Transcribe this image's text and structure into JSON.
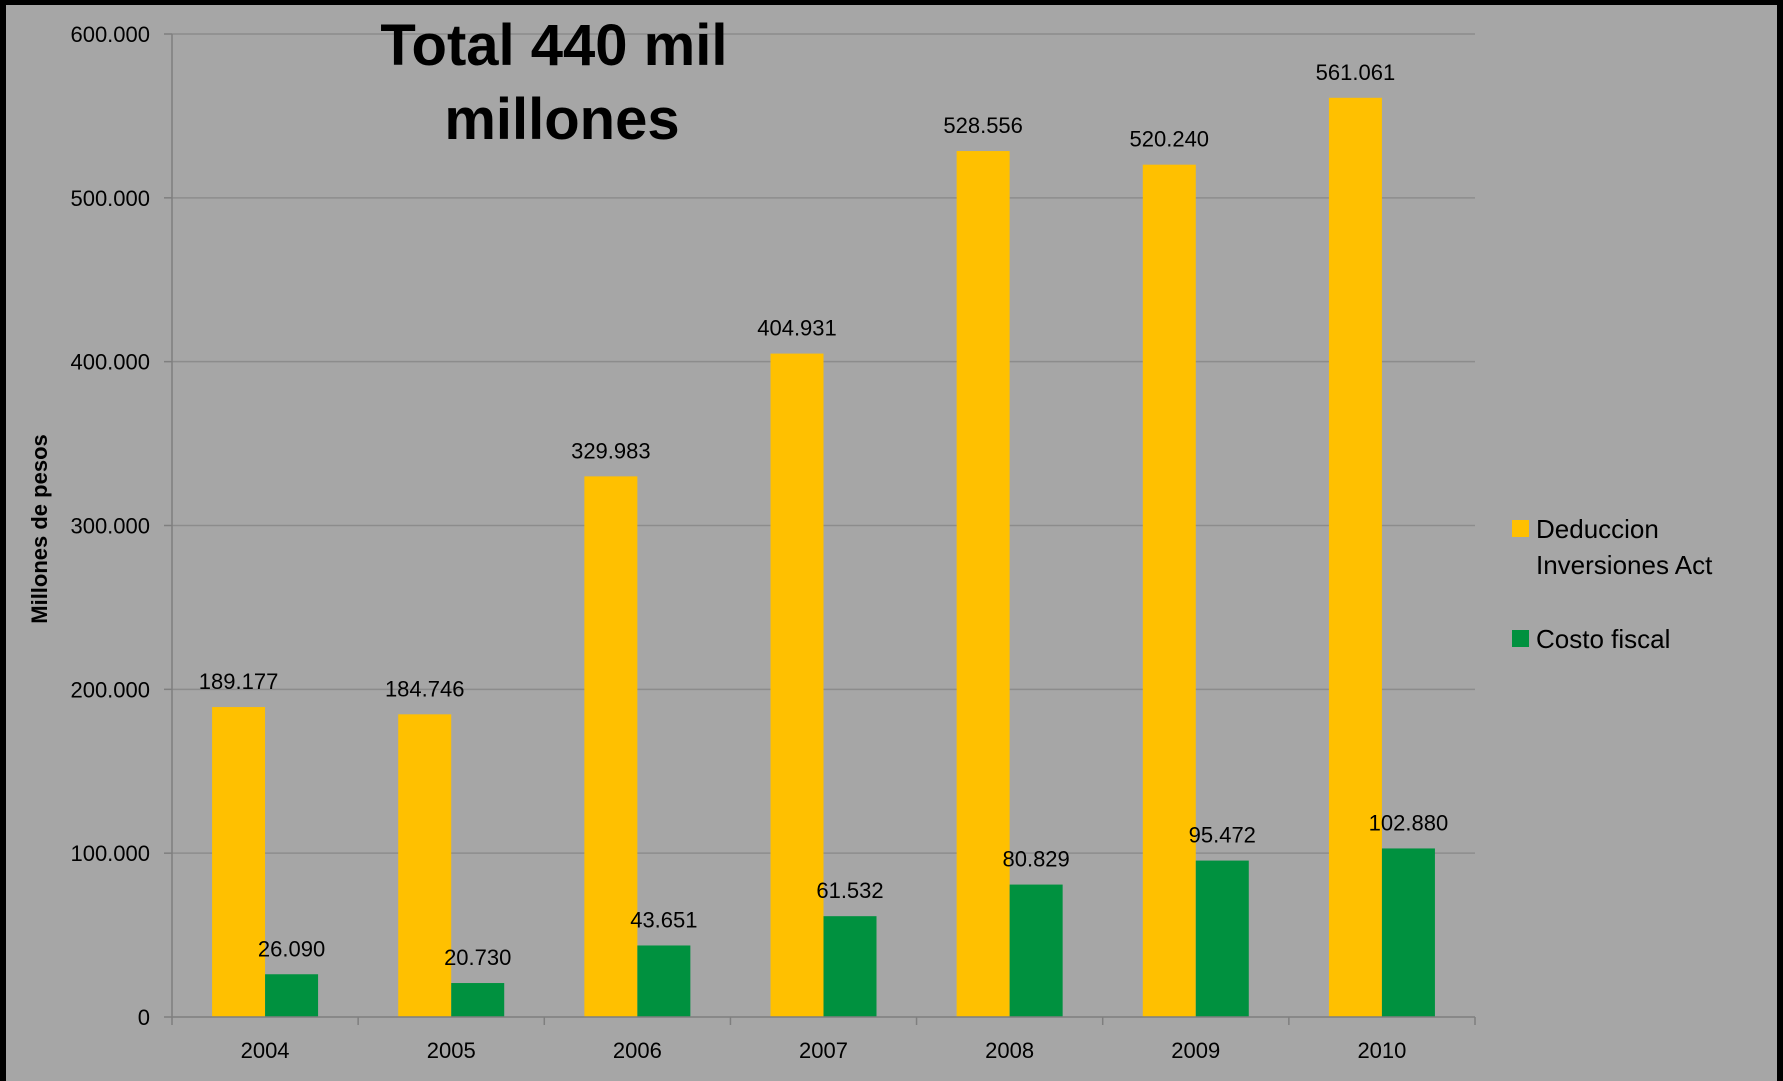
{
  "chart_data": {
    "type": "bar",
    "title_lines": [
      "Total 440 mil",
      "millones"
    ],
    "xlabel": "",
    "ylabel": "Millones de pesos",
    "ylim": [
      0,
      600000
    ],
    "y_ticks": [
      0,
      100000,
      200000,
      300000,
      400000,
      500000,
      600000
    ],
    "y_tick_labels": [
      "0",
      "100.000",
      "200.000",
      "300.000",
      "400.000",
      "500.000",
      "600.000"
    ],
    "categories": [
      "2004",
      "2005",
      "2006",
      "2007",
      "2008",
      "2009",
      "2010"
    ],
    "grid": true,
    "legend_position": "right",
    "series": [
      {
        "name": "Deduccion Inversiones Act",
        "legend_lines": [
          "Deduccion",
          "Inversiones Act"
        ],
        "color": "#ffc000",
        "values": [
          189177,
          184746,
          329983,
          404931,
          528556,
          520240,
          561061
        ],
        "labels": [
          "189.177",
          "184.746",
          "329.983",
          "404.931",
          "528.556",
          "520.240",
          "561.061"
        ]
      },
      {
        "name": "Costo fiscal",
        "legend_lines": [
          "Costo fiscal"
        ],
        "color": "#00913f",
        "values": [
          26090,
          20730,
          43651,
          61532,
          80829,
          95472,
          102880
        ],
        "labels": [
          "26.090",
          "20.730",
          "43.651",
          "61.532",
          "80.829",
          "95.472",
          "102.880"
        ]
      }
    ]
  },
  "colors": {
    "plot_background": "#a6a6a6",
    "frame": "#000000",
    "gridline": "#8c8c8c",
    "axis_line": "#7f7f7f"
  }
}
